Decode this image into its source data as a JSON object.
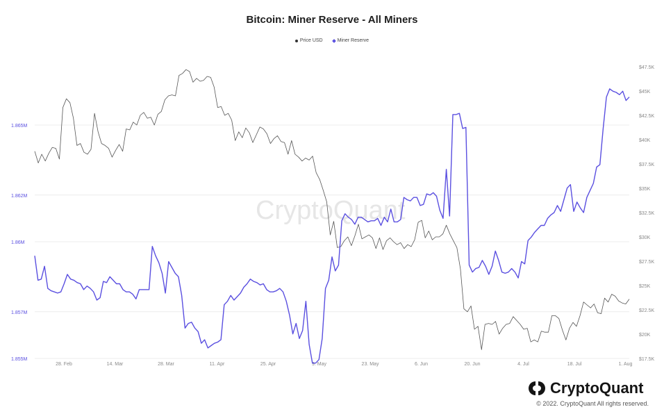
{
  "title": "Bitcoin: Miner Reserve - All Miners",
  "legend": {
    "price_label": "Price USD",
    "reserve_label": "Miner Reserve"
  },
  "watermark": "CryptoQuant",
  "brand": {
    "name": "CryptoQuant",
    "copyright": "© 2022. CryptoQuant All rights reserved."
  },
  "colors": {
    "price_line": "#555555",
    "reserve_line": "#5a4fe0",
    "grid": "#ececec"
  },
  "chart_data": {
    "type": "line",
    "title": "Bitcoin: Miner Reserve - All Miners",
    "x_tick_labels": [
      "28. Feb",
      "14. Mar",
      "28. Mar",
      "11. Apr",
      "25. Apr",
      "9. May",
      "23. May",
      "6. Jun",
      "20. Jun",
      "4. Jul",
      "18. Jul",
      "1. Aug"
    ],
    "left_axis": {
      "ticks": [
        1855000,
        1857000,
        1860000,
        1862000,
        1865000
      ],
      "tick_labels": [
        "1.855M",
        "1.857M",
        "1.86M",
        "1.862M",
        "1.865M"
      ],
      "range": [
        1855000,
        1867500
      ]
    },
    "right_axis": {
      "ticks": [
        17500,
        20000,
        22500,
        25000,
        27500,
        30000,
        32500,
        35000,
        37500,
        40000,
        42500,
        45000,
        47500
      ],
      "tick_labels": [
        "$17.5K",
        "$20K",
        "$22.5K",
        "$25K",
        "$27.5K",
        "$30K",
        "$32.5K",
        "$35K",
        "$37.5K",
        "$40K",
        "$42.5K",
        "$45K",
        "$47.5K"
      ],
      "range": [
        17500,
        47500
      ]
    },
    "series": [
      {
        "name": "Price USD",
        "axis": "right",
        "values": [
          38800,
          37600,
          38500,
          37800,
          38600,
          39200,
          39100,
          38000,
          43300,
          44200,
          43800,
          42200,
          39400,
          39600,
          38700,
          38500,
          39000,
          42700,
          40800,
          39600,
          39400,
          39100,
          38200,
          38900,
          39500,
          38800,
          41100,
          41000,
          41800,
          41500,
          42500,
          42800,
          42200,
          42300,
          41500,
          42600,
          42900,
          44100,
          44500,
          44600,
          44500,
          46600,
          46800,
          47200,
          47000,
          45900,
          46300,
          46000,
          46100,
          46500,
          46400,
          45400,
          43300,
          43400,
          42500,
          42700,
          42000,
          39900,
          40800,
          40200,
          41200,
          40700,
          39700,
          40500,
          41300,
          41100,
          40600,
          39600,
          40100,
          40400,
          39800,
          39700,
          38500,
          39900,
          38500,
          38200,
          37800,
          38100,
          37900,
          38300,
          36600,
          35900,
          34800,
          33600,
          30200,
          31600,
          28900,
          29000,
          29600,
          30000,
          29100,
          30100,
          31300,
          29800,
          30000,
          30200,
          29900,
          28800,
          29900,
          28700,
          29600,
          29900,
          29500,
          29200,
          29400,
          28800,
          29200,
          29000,
          29700,
          31500,
          31700,
          29900,
          30600,
          29700,
          30000,
          30000,
          30300,
          31200,
          30300,
          29600,
          28900,
          26700,
          22600,
          22300,
          22900,
          20500,
          20800,
          18400,
          21000,
          21100,
          21000,
          21300,
          20000,
          20600,
          21000,
          21100,
          21800,
          21400,
          21000,
          20500,
          20600,
          19200,
          19400,
          19200,
          20300,
          20200,
          20200,
          21900,
          21900,
          21600,
          20400,
          19400,
          20600,
          21200,
          20800,
          21900,
          23300,
          23000,
          22700,
          23100,
          22200,
          22100,
          23700,
          23300,
          24100,
          23900,
          23400,
          23200,
          23100,
          23600
        ]
      },
      {
        "name": "Miner Reserve",
        "axis": "left",
        "values": [
          1859400,
          1858350,
          1858400,
          1858950,
          1858000,
          1857900,
          1857850,
          1857800,
          1857850,
          1858200,
          1858600,
          1858400,
          1858350,
          1858250,
          1858200,
          1857950,
          1858100,
          1858000,
          1857850,
          1857500,
          1857600,
          1858300,
          1858250,
          1858500,
          1858350,
          1858200,
          1858200,
          1857950,
          1857850,
          1857850,
          1857750,
          1857550,
          1857950,
          1857950,
          1857950,
          1857950,
          1859800,
          1859400,
          1859100,
          1858650,
          1857800,
          1859150,
          1858900,
          1858650,
          1858500,
          1857700,
          1856300,
          1856500,
          1856550,
          1856300,
          1856150,
          1855650,
          1855800,
          1855450,
          1855550,
          1855650,
          1855700,
          1855800,
          1857300,
          1857450,
          1857700,
          1857500,
          1857650,
          1857800,
          1858050,
          1858200,
          1858400,
          1858300,
          1858250,
          1858150,
          1858200,
          1857950,
          1857850,
          1857850,
          1857900,
          1858000,
          1857850,
          1857450,
          1856850,
          1856050,
          1856500,
          1855850,
          1856200,
          1857450,
          1855600,
          1854800,
          1854800,
          1854950,
          1855850,
          1858000,
          1858350,
          1859350,
          1858750,
          1859000,
          1860900,
          1861200,
          1861050,
          1860950,
          1860750,
          1861050,
          1861050,
          1860950,
          1860850,
          1860900,
          1860900,
          1861000,
          1860700,
          1861050,
          1860850,
          1861400,
          1860850,
          1860850,
          1860950,
          1861900,
          1861800,
          1861750,
          1861900,
          1861900,
          1861550,
          1861600,
          1862050,
          1862000,
          1862100,
          1861950,
          1861350,
          1861000,
          1863100,
          1861100,
          1865450,
          1865450,
          1865500,
          1864850,
          1864900,
          1859000,
          1858700,
          1858850,
          1858900,
          1859200,
          1858950,
          1858600,
          1858950,
          1859600,
          1859200,
          1858700,
          1858650,
          1858700,
          1858850,
          1858700,
          1858450,
          1859150,
          1859050,
          1860050,
          1860200,
          1860400,
          1860550,
          1860700,
          1860700,
          1861000,
          1861150,
          1861250,
          1861550,
          1861300,
          1861800,
          1862300,
          1862450,
          1861300,
          1861700,
          1861450,
          1861250,
          1861900,
          1862200,
          1862500,
          1863200,
          1863300,
          1864850,
          1866200,
          1866550,
          1866450,
          1866400,
          1866300,
          1866450,
          1866050,
          1866200
        ]
      }
    ]
  }
}
